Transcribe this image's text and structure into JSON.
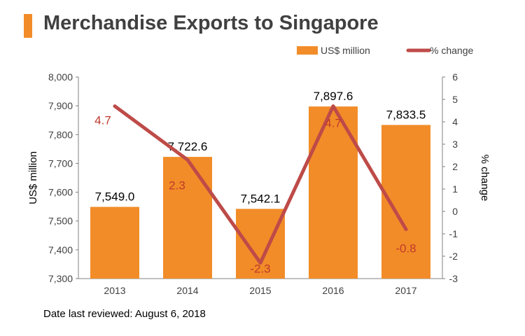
{
  "header": {
    "title": "Merchandise Exports to Singapore"
  },
  "footer": {
    "note": "Date last reviewed: August 6, 2018"
  },
  "colors": {
    "bar": "#F28C28",
    "line": "#BE4B48",
    "title_accent": "#F28C28",
    "title_text": "#404040",
    "line_label": "#C0392B"
  },
  "chart_data": {
    "type": "bar",
    "categories": [
      "2013",
      "2014",
      "2015",
      "2016",
      "2017"
    ],
    "series": [
      {
        "name": "US$ million",
        "type": "bar",
        "axis": "left",
        "values": [
          7549.0,
          7722.6,
          7542.1,
          7897.6,
          7833.5
        ],
        "labels": [
          "7,549.0",
          "7,722.6",
          "7,542.1",
          "7,897.6",
          "7,833.5"
        ]
      },
      {
        "name": "% change",
        "type": "line",
        "axis": "right",
        "values": [
          4.7,
          2.3,
          -2.3,
          4.7,
          -0.8
        ],
        "labels": [
          "4.7",
          "2.3",
          "-2.3",
          "4.7",
          "-0.8"
        ]
      }
    ],
    "ylabel": "US$ million",
    "y2label": "% change",
    "ylim": [
      7300,
      8000
    ],
    "y2lim": [
      -3,
      6
    ],
    "yticks": [
      "7,300",
      "7,400",
      "7,500",
      "7,600",
      "7,700",
      "7,800",
      "7,900",
      "8,000"
    ],
    "y2ticks": [
      "-3",
      "-2",
      "-1",
      "0",
      "1",
      "2",
      "3",
      "4",
      "5",
      "6"
    ],
    "legend_position": "top-right",
    "grid": false
  }
}
